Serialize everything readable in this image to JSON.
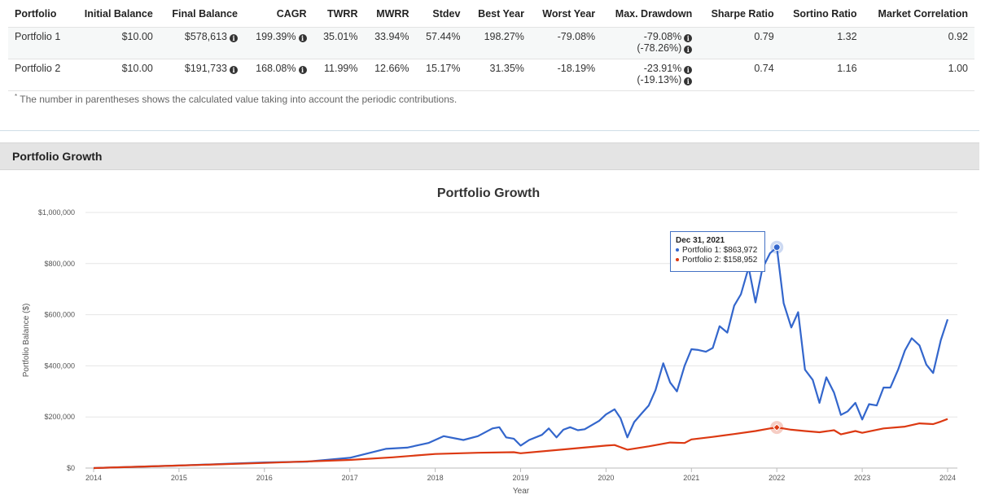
{
  "stats_table": {
    "headers": [
      "Portfolio",
      "Initial Balance",
      "Final Balance",
      "CAGR",
      "TWRR",
      "MWRR",
      "Stdev",
      "Best Year",
      "Worst Year",
      "Max. Drawdown",
      "Sharpe Ratio",
      "Sortino Ratio",
      "Market Correlation"
    ],
    "rows": [
      {
        "portfolio": "Portfolio 1",
        "initial": "$10.00",
        "final": "$578,613",
        "cagr": "199.39%",
        "twrr": "35.01%",
        "mwrr": "33.94%",
        "stdev": "57.44%",
        "best": "198.27%",
        "worst": "-79.08%",
        "drawdown": "-79.08%",
        "drawdown_contrib": "(-78.26%)",
        "sharpe": "0.79",
        "sortino": "1.32",
        "correlation": "0.92"
      },
      {
        "portfolio": "Portfolio 2",
        "initial": "$10.00",
        "final": "$191,733",
        "cagr": "168.08%",
        "twrr": "11.99%",
        "mwrr": "12.66%",
        "stdev": "15.17%",
        "best": "31.35%",
        "worst": "-18.19%",
        "drawdown": "-23.91%",
        "drawdown_contrib": "(-19.13%)",
        "sharpe": "0.74",
        "sortino": "1.16",
        "correlation": "1.00"
      }
    ],
    "info_icon": "info-circle-icon"
  },
  "footnote": {
    "marker": "*",
    "text": "The number in parentheses shows the calculated value taking into account the periodic contributions."
  },
  "panel": {
    "title": "Portfolio Growth"
  },
  "tooltip": {
    "date": "Dec 31, 2021",
    "line1": "Portfolio 1: $863,972",
    "line2": "Portfolio 2: $158,952"
  },
  "chart_data": {
    "type": "line",
    "title": "Portfolio Growth",
    "xlabel": "Year",
    "ylabel": "Portfolio Balance ($)",
    "ylim": [
      0,
      1000000
    ],
    "yticks": [
      0,
      200000,
      400000,
      600000,
      800000,
      1000000
    ],
    "ytick_labels": [
      "$0",
      "$200,000",
      "$400,000",
      "$600,000",
      "$800,000",
      "$1,000,000"
    ],
    "xticks": [
      2014,
      2015,
      2016,
      2017,
      2018,
      2019,
      2020,
      2021,
      2022,
      2023,
      2024
    ],
    "xlim": [
      2014,
      2024
    ],
    "grid": true,
    "colors": {
      "portfolio1": "#3366cc",
      "portfolio2": "#dc3912"
    },
    "highlight_x": 2022,
    "series": [
      {
        "name": "Portfolio 1",
        "color": "#3366cc",
        "points": [
          [
            2014,
            0
          ],
          [
            2015,
            10000
          ],
          [
            2015.5,
            16000
          ],
          [
            2016,
            22000
          ],
          [
            2016.5,
            25000
          ],
          [
            2017,
            40000
          ],
          [
            2017.42,
            75000
          ],
          [
            2017.67,
            80000
          ],
          [
            2017.92,
            98000
          ],
          [
            2018.1,
            125000
          ],
          [
            2018.33,
            110000
          ],
          [
            2018.5,
            125000
          ],
          [
            2018.67,
            155000
          ],
          [
            2018.75,
            160000
          ],
          [
            2018.83,
            120000
          ],
          [
            2018.92,
            115000
          ],
          [
            2019,
            88000
          ],
          [
            2019.1,
            110000
          ],
          [
            2019.25,
            130000
          ],
          [
            2019.33,
            155000
          ],
          [
            2019.42,
            120000
          ],
          [
            2019.5,
            150000
          ],
          [
            2019.58,
            160000
          ],
          [
            2019.67,
            148000
          ],
          [
            2019.75,
            152000
          ],
          [
            2019.92,
            185000
          ],
          [
            2020,
            210000
          ],
          [
            2020.1,
            230000
          ],
          [
            2020.17,
            195000
          ],
          [
            2020.25,
            120000
          ],
          [
            2020.33,
            180000
          ],
          [
            2020.42,
            215000
          ],
          [
            2020.5,
            245000
          ],
          [
            2020.58,
            305000
          ],
          [
            2020.67,
            410000
          ],
          [
            2020.75,
            335000
          ],
          [
            2020.83,
            300000
          ],
          [
            2020.92,
            400000
          ],
          [
            2021,
            465000
          ],
          [
            2021.08,
            462000
          ],
          [
            2021.17,
            455000
          ],
          [
            2021.25,
            470000
          ],
          [
            2021.33,
            555000
          ],
          [
            2021.42,
            530000
          ],
          [
            2021.5,
            635000
          ],
          [
            2021.58,
            680000
          ],
          [
            2021.67,
            785000
          ],
          [
            2021.75,
            648000
          ],
          [
            2021.83,
            780000
          ],
          [
            2021.92,
            840000
          ],
          [
            2022,
            864000
          ],
          [
            2022.08,
            645000
          ],
          [
            2022.17,
            550000
          ],
          [
            2022.25,
            610000
          ],
          [
            2022.33,
            385000
          ],
          [
            2022.42,
            345000
          ],
          [
            2022.5,
            255000
          ],
          [
            2022.58,
            355000
          ],
          [
            2022.67,
            295000
          ],
          [
            2022.75,
            208000
          ],
          [
            2022.83,
            222000
          ],
          [
            2022.92,
            255000
          ],
          [
            2023,
            190000
          ],
          [
            2023.08,
            250000
          ],
          [
            2023.17,
            245000
          ],
          [
            2023.25,
            315000
          ],
          [
            2023.33,
            315000
          ],
          [
            2023.42,
            385000
          ],
          [
            2023.5,
            460000
          ],
          [
            2023.58,
            508000
          ],
          [
            2023.67,
            480000
          ],
          [
            2023.75,
            405000
          ],
          [
            2023.83,
            372000
          ],
          [
            2023.92,
            500000
          ],
          [
            2024,
            582000
          ]
        ]
      },
      {
        "name": "Portfolio 2",
        "color": "#dc3912",
        "points": [
          [
            2014,
            0
          ],
          [
            2015,
            10000
          ],
          [
            2016,
            20000
          ],
          [
            2017,
            32000
          ],
          [
            2017.5,
            42000
          ],
          [
            2018,
            55000
          ],
          [
            2018.5,
            60000
          ],
          [
            2018.92,
            62000
          ],
          [
            2019,
            58000
          ],
          [
            2019.5,
            73000
          ],
          [
            2020,
            88000
          ],
          [
            2020.1,
            90000
          ],
          [
            2020.25,
            72000
          ],
          [
            2020.5,
            85000
          ],
          [
            2020.75,
            100000
          ],
          [
            2020.92,
            98000
          ],
          [
            2021,
            112000
          ],
          [
            2021.25,
            122000
          ],
          [
            2021.5,
            133000
          ],
          [
            2021.75,
            145000
          ],
          [
            2021.92,
            155000
          ],
          [
            2022,
            159000
          ],
          [
            2022.17,
            150000
          ],
          [
            2022.33,
            145000
          ],
          [
            2022.5,
            140000
          ],
          [
            2022.67,
            148000
          ],
          [
            2022.75,
            132000
          ],
          [
            2022.92,
            145000
          ],
          [
            2023,
            138000
          ],
          [
            2023.25,
            155000
          ],
          [
            2023.5,
            162000
          ],
          [
            2023.67,
            175000
          ],
          [
            2023.83,
            172000
          ],
          [
            2023.92,
            182000
          ],
          [
            2024,
            192000
          ]
        ]
      }
    ]
  }
}
